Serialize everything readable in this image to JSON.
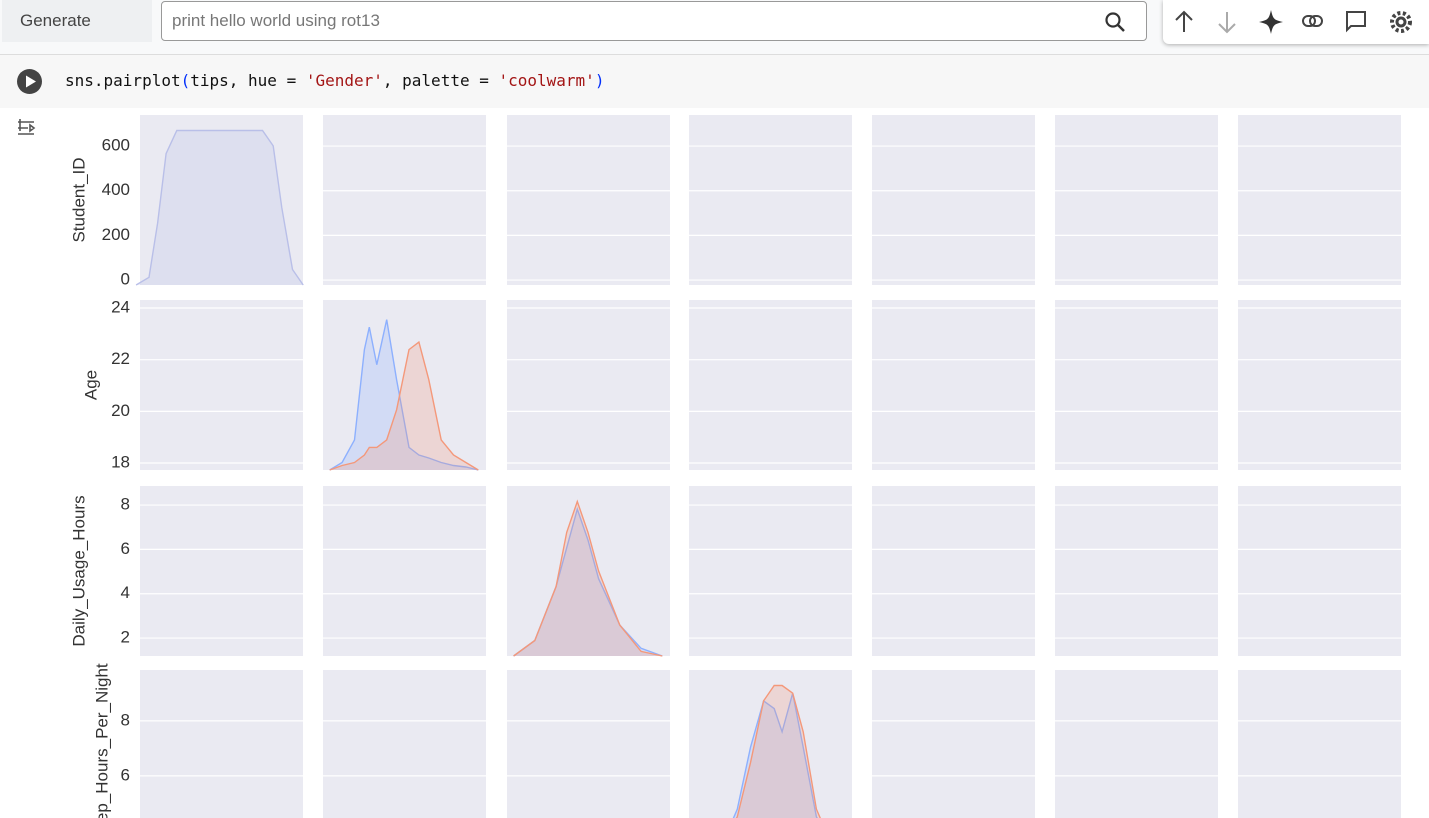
{
  "toolbar": {
    "generate": "Generate",
    "search_placeholder": "print hello world using rot13"
  },
  "cell": {
    "code": [
      "sns.pairplot",
      "(",
      "tips, hue = ",
      "'Gender'",
      ", palette = ",
      "'coolwarm'",
      ")"
    ]
  },
  "chart_data": {
    "type": "pairplot",
    "grid": true,
    "rows": [
      {
        "label": "Student_ID",
        "ylim": [
          -22,
          739
        ],
        "yticks": [
          0,
          200,
          400,
          600
        ],
        "kde": {
          "x": [
            -40,
            20,
            60,
            100,
            150,
            350,
            550,
            600,
            640,
            690,
            740
          ],
          "density_lim": [
            0,
            1.1
          ],
          "series": [
            {
              "color": "#b9bfe8",
              "values": [
                0,
                0.05,
                0.4,
                0.85,
                1,
                1,
                1,
                0.9,
                0.5,
                0.1,
                0
              ]
            }
          ]
        }
      },
      {
        "label": "Age",
        "ylim": [
          17.73,
          24.31
        ],
        "yticks": [
          18,
          20,
          22,
          24
        ],
        "kde": {
          "x": [
            18,
            18.5,
            19,
            19.4,
            19.6,
            19.9,
            20.3,
            20.7,
            21.2,
            21.6,
            22,
            22.5,
            23,
            23.5,
            24
          ],
          "density_lim": [
            0,
            1.13
          ],
          "series": [
            {
              "color": "#8db0fe",
              "values": [
                0,
                0.05,
                0.2,
                0.8,
                0.95,
                0.7,
                1,
                0.6,
                0.15,
                0.1,
                0.08,
                0.05,
                0.03,
                0.02,
                0
              ]
            },
            {
              "color": "#f4987a",
              "values": [
                0,
                0.03,
                0.05,
                0.1,
                0.15,
                0.15,
                0.2,
                0.4,
                0.8,
                0.85,
                0.6,
                0.2,
                0.1,
                0.05,
                0
              ]
            }
          ]
        }
      },
      {
        "label": "Daily_Usage_Hours",
        "ylim": [
          1.19,
          8.86
        ],
        "yticks": [
          2,
          4,
          6,
          8
        ],
        "kde": {
          "x": [
            1.5,
            2.5,
            3.5,
            4,
            4.5,
            5,
            5.5,
            6.5,
            7.5,
            8.5
          ],
          "density_lim": [
            0,
            1.1
          ],
          "series": [
            {
              "color": "#8db0fe",
              "values": [
                0,
                0.1,
                0.45,
                0.7,
                0.95,
                0.75,
                0.5,
                0.2,
                0.05,
                0
              ]
            },
            {
              "color": "#f4987a",
              "values": [
                0,
                0.1,
                0.45,
                0.8,
                1,
                0.8,
                0.55,
                0.2,
                0.03,
                0
              ]
            }
          ]
        }
      },
      {
        "label": "Sleep_Hours_Per_Night",
        "ylim": [
          3.67,
          9.85
        ],
        "yticks": [
          6,
          8
        ],
        "kde": {
          "x": [
            5,
            5.5,
            6,
            6.5,
            6.9,
            7.2,
            7.6,
            8,
            8.5,
            9
          ],
          "density_lim": [
            0,
            1.1
          ],
          "series": [
            {
              "color": "#8db0fe",
              "values": [
                0,
                0.2,
                0.6,
                0.9,
                0.85,
                0.7,
                0.95,
                0.6,
                0.15,
                0
              ]
            },
            {
              "color": "#f4987a",
              "values": [
                0,
                0.15,
                0.5,
                0.9,
                1,
                1,
                0.95,
                0.7,
                0.2,
                0
              ]
            }
          ]
        }
      }
    ]
  }
}
